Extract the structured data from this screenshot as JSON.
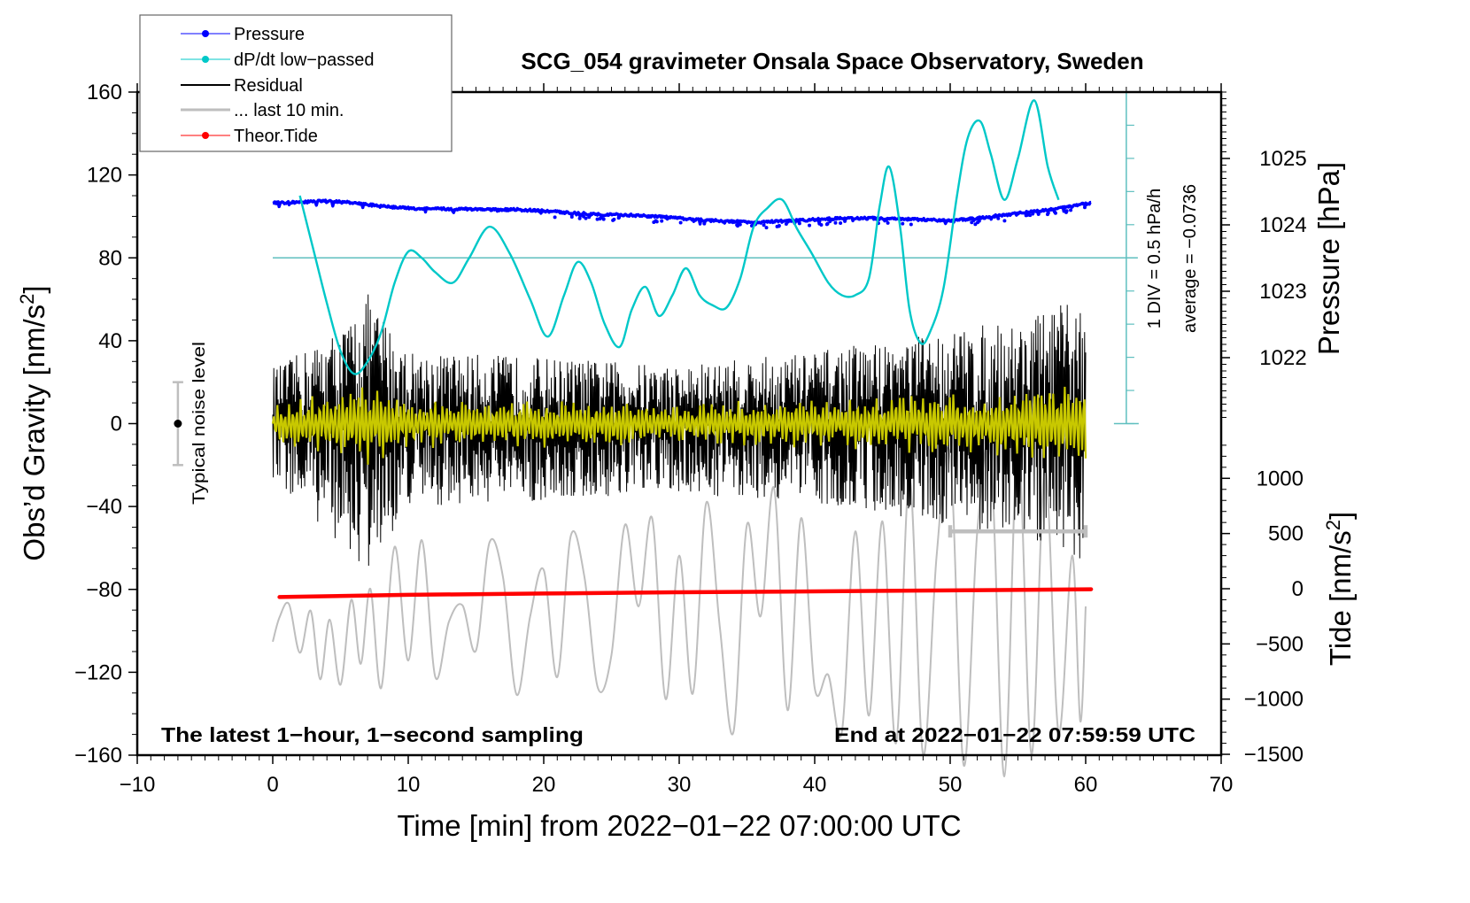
{
  "chart_data": {
    "type": "line",
    "title": "SCG_054 gravimeter Onsala Space Observatory, Sweden",
    "xlabel": "Time [min] from 2022−01−22 07:00:00 UTC",
    "ylabel_left": "Obs’d Gravity [nm/s²]",
    "ylabel_right_top": "Pressure [hPa]",
    "ylabel_right_bottom": "Tide [nm/s²]",
    "xlim": [
      -10,
      70
    ],
    "ylim_left": [
      -160,
      160
    ],
    "ylim_pressure": [
      1021.0,
      1026.0
    ],
    "ylim_tide": [
      -1500,
      1500
    ],
    "x_ticks": [
      "−10",
      "0",
      "10",
      "20",
      "30",
      "40",
      "50",
      "60",
      "70"
    ],
    "x_tick_values": [
      -10,
      0,
      10,
      20,
      30,
      40,
      50,
      60,
      70
    ],
    "y_left_ticks": [
      "160",
      "120",
      "80",
      "40",
      "0",
      "−40",
      "−80",
      "−120",
      "−160"
    ],
    "y_left_tick_values": [
      160,
      120,
      80,
      40,
      0,
      -40,
      -80,
      -120,
      -160
    ],
    "y_pressure_ticks": [
      "1025",
      "1024",
      "1023",
      "1022"
    ],
    "y_pressure_tick_values": [
      1025,
      1024,
      1023,
      1022
    ],
    "y_tide_ticks": [
      "1000",
      "500",
      "0",
      "−500",
      "−1000",
      "−1500"
    ],
    "y_tide_tick_values": [
      1000,
      500,
      0,
      -500,
      -1000,
      -1500
    ],
    "grid": false,
    "legend_position": "top-left",
    "legend": [
      {
        "label": "Pressure",
        "color": "#0000ff",
        "marker": "dot"
      },
      {
        "label": "dP/dt low−passed",
        "color": "#00c8c8",
        "marker": "dot"
      },
      {
        "label": "Residual",
        "color": "#000000",
        "marker": "line"
      },
      {
        "label": "... last 10 min.",
        "color": "#bebebe",
        "marker": "line"
      },
      {
        "label": "Theor.Tide",
        "color": "#ff0000",
        "marker": "dot"
      }
    ],
    "annotations": {
      "bottom_left": "The latest 1−hour, 1−second sampling",
      "bottom_right": "End at 2022−01−22 07:59:59 UTC",
      "noise_label": "Typical noise level",
      "noise_bar": {
        "x": -7,
        "center": 0,
        "half_range": 20
      },
      "dpdt_scale": "1 DIV = 0.5 hPa/h",
      "dpdt_average": "average = −0.0736",
      "ten_min_bar": {
        "x_start": 50,
        "x_end": 60,
        "y": -52
      }
    },
    "dpdt_axis": {
      "x": 63,
      "zero_level_gravity": 80,
      "div_hpa_per_h": 0.5,
      "divisions_up": 5,
      "divisions_down": 5
    },
    "series": [
      {
        "name": "Pressure",
        "axis": "pressure",
        "color": "#0000ff",
        "x": [
          0,
          2,
          4,
          6,
          8,
          10,
          12,
          14,
          16,
          18,
          20,
          22,
          24,
          26,
          28,
          30,
          32,
          34,
          36,
          38,
          40,
          42,
          44,
          46,
          48,
          50,
          52,
          54,
          56,
          58,
          60.4
        ],
        "values": [
          1024.33,
          1024.34,
          1024.36,
          1024.33,
          1024.28,
          1024.25,
          1024.24,
          1024.24,
          1024.23,
          1024.23,
          1024.21,
          1024.18,
          1024.16,
          1024.15,
          1024.13,
          1024.1,
          1024.07,
          1024.05,
          1024.04,
          1024.06,
          1024.08,
          1024.1,
          1024.1,
          1024.09,
          1024.08,
          1024.06,
          1024.1,
          1024.15,
          1024.2,
          1024.25,
          1024.33
        ]
      },
      {
        "name": "dP/dt low-passed",
        "axis": "left",
        "color": "#00c8c8",
        "x": [
          2.0,
          3.0,
          4.0,
          5.0,
          6.0,
          7.0,
          8.0,
          9.0,
          10.0,
          11.0,
          12.0,
          13.3,
          14.5,
          16.0,
          17.5,
          19.0,
          20.3,
          21.5,
          22.5,
          23.5,
          24.5,
          25.6,
          26.5,
          27.5,
          28.5,
          29.5,
          30.5,
          31.5,
          32.5,
          33.5,
          34.5,
          35.5,
          36.5,
          37.6,
          38.7,
          39.8,
          41.0,
          42.0,
          43.0,
          44.0,
          44.8,
          45.5,
          46.3,
          47.0,
          47.8,
          48.5,
          49.5,
          50.5,
          51.3,
          52.2,
          53.0,
          54.0,
          55.0,
          56.2,
          57.2,
          58.0
        ],
        "values": [
          110,
          84,
          58,
          35,
          24,
          30,
          44,
          68,
          83,
          80,
          73,
          68,
          80,
          95,
          82,
          60,
          42,
          62,
          78,
          68,
          48,
          37,
          55,
          66,
          52,
          62,
          75,
          62,
          57,
          56,
          70,
          95,
          104,
          108,
          94,
          82,
          68,
          62,
          62,
          70,
          105,
          124,
          95,
          55,
          39,
          44,
          65,
          110,
          138,
          146,
          130,
          108,
          128,
          156,
          124,
          108
        ]
      },
      {
        "name": "Residual",
        "axis": "left",
        "color": "#000000",
        "x_range": [
          0,
          60
        ],
        "envelope_peaks": [
          {
            "x": 0.5,
            "min": -30,
            "max": 28
          },
          {
            "x": 5.5,
            "min": -62,
            "max": 48
          },
          {
            "x": 6.9,
            "min": -75,
            "max": 64
          },
          {
            "x": 10,
            "min": -40,
            "max": 35
          },
          {
            "x": 20,
            "min": -38,
            "max": 32
          },
          {
            "x": 30,
            "min": -34,
            "max": 28
          },
          {
            "x": 40,
            "min": -38,
            "max": 35
          },
          {
            "x": 44,
            "min": -42,
            "max": 39
          },
          {
            "x": 55,
            "min": -55,
            "max": 50
          },
          {
            "x": 59.5,
            "min": -65,
            "max": 60
          }
        ]
      },
      {
        "name": "Residual (smoothed, yellow)",
        "axis": "left",
        "color": "#c8c800",
        "x_range": [
          0,
          60
        ],
        "amplitude_range": [
          -22,
          22
        ]
      },
      {
        "name": "... last 10 min.",
        "axis": "tide",
        "color": "#bebebe",
        "x_range": [
          0,
          60
        ],
        "x": [
          0.0,
          0.5,
          1.2,
          2.0,
          2.8,
          3.5,
          4.2,
          5.0,
          5.8,
          6.5,
          7.2,
          8.0,
          9.0,
          10.0,
          11.0,
          12.0,
          13.0,
          14.0,
          15.0,
          16.0,
          17.0,
          18.0,
          19.0,
          20.0,
          21.0,
          22.0,
          23.0,
          24.0,
          25.0,
          26.0,
          27.0,
          28.0,
          29.0,
          30.0,
          31.0,
          32.0,
          33.0,
          34.0,
          35.0,
          36.0,
          37.0,
          38.0,
          39.0,
          40.0,
          41.0,
          42.0,
          43.0,
          44.0,
          45.0,
          46.0,
          47.0,
          48.0,
          49.0,
          50.0,
          51.0,
          52.0,
          53.0,
          54.0,
          55.0,
          56.0,
          57.0,
          58.0,
          59.0,
          59.6,
          60.0
        ],
        "values": [
          -480,
          -260,
          -140,
          -580,
          -200,
          -820,
          -280,
          -870,
          -100,
          -680,
          0,
          -900,
          380,
          -650,
          440,
          -800,
          -300,
          -150,
          -560,
          420,
          100,
          -960,
          -250,
          170,
          -800,
          480,
          110,
          -900,
          -600,
          580,
          -160,
          640,
          -1000,
          300,
          -950,
          780,
          -350,
          -1300,
          580,
          -250,
          910,
          -1100,
          640,
          -900,
          -780,
          -1300,
          520,
          -1150,
          610,
          -1400,
          1000,
          -1500,
          300,
          1200,
          -1600,
          520,
          1210,
          -1700,
          1330,
          -1500,
          1100,
          -1300,
          300,
          -1200,
          -160
        ]
      },
      {
        "name": "Theor.Tide",
        "axis": "tide",
        "color": "#ff0000",
        "x": [
          0.5,
          10,
          20,
          30,
          40,
          50,
          60.4
        ],
        "values": [
          -75,
          -55,
          -43,
          -32,
          -24,
          -15,
          -5
        ]
      }
    ]
  }
}
